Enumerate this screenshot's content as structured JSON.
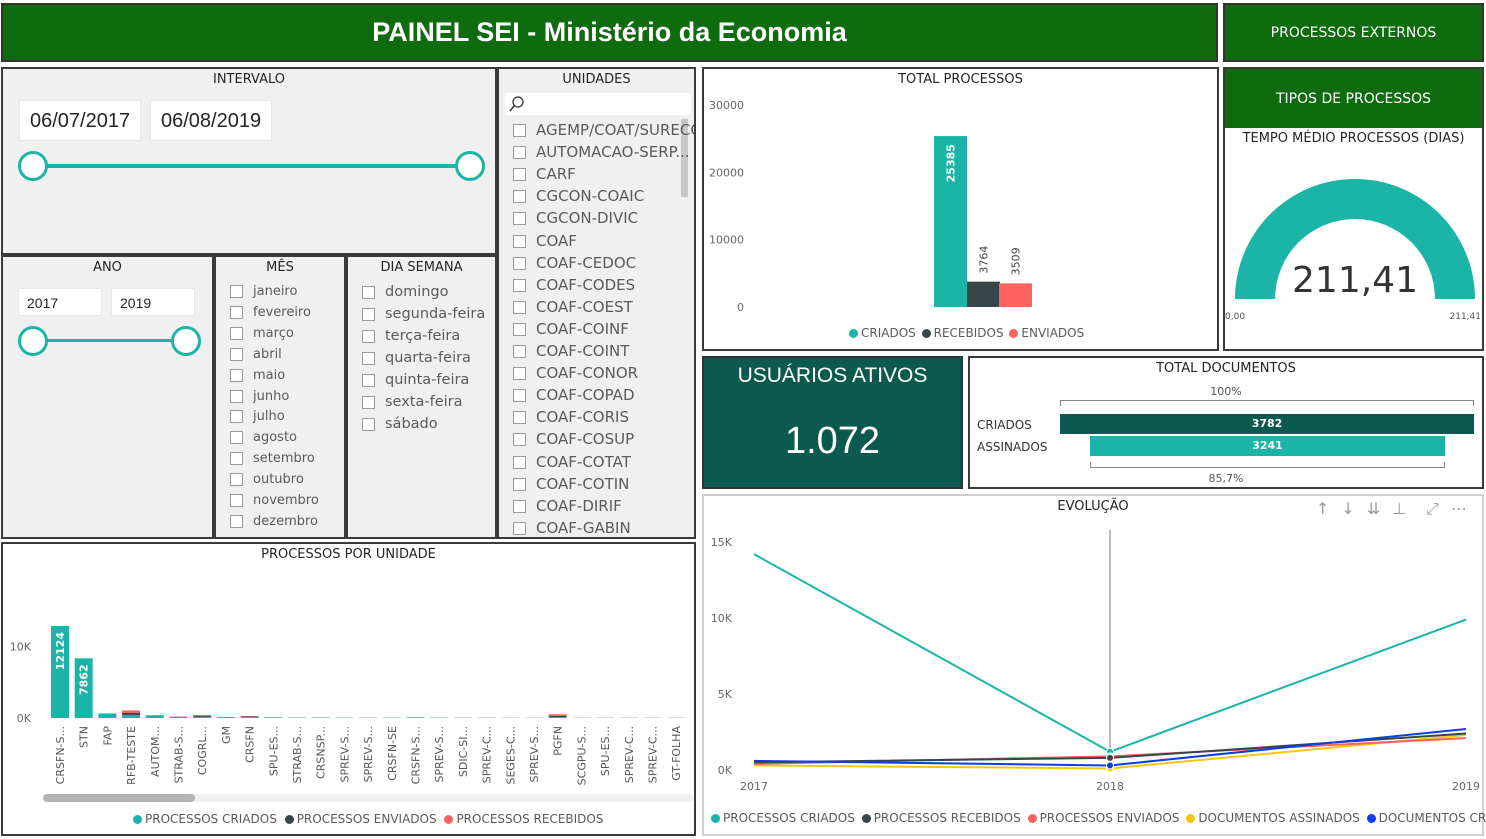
{
  "header": {
    "title": "PAINEL SEI - Ministério da Economia"
  },
  "nav": {
    "external": "PROCESSOS EXTERNOS",
    "types": "TIPOS DE PROCESSOS"
  },
  "colors": {
    "teal": "#1ab5a7",
    "dark": "#374649",
    "red": "#fd625e",
    "yellow": "#f2c80f",
    "blue": "#0b3ee8",
    "green": "#0e6b0e",
    "darkgreen": "#0c5a4f"
  },
  "intervalo": {
    "title": "INTERVALO",
    "start": "06/07/2017",
    "end": "06/08/2019"
  },
  "ano": {
    "title": "ANO",
    "start": "2017",
    "end": "2019"
  },
  "mes": {
    "title": "MÊS",
    "items": [
      "janeiro",
      "fevereiro",
      "março",
      "abril",
      "maio",
      "junho",
      "julho",
      "agosto",
      "setembro",
      "outubro",
      "novembro",
      "dezembro"
    ]
  },
  "dia": {
    "title": "DIA SEMANA",
    "items": [
      "domingo",
      "segunda-feira",
      "terça-feira",
      "quarta-feira",
      "quinta-feira",
      "sexta-feira",
      "sábado"
    ]
  },
  "unidades": {
    "title": "UNIDADES",
    "search_placeholder": "",
    "items": [
      "AGEMP/COAT/SURECO",
      "AUTOMACAO-SERP...",
      "CARF",
      "CGCON-COAIC",
      "CGCON-DIVIC",
      "COAF",
      "COAF-CEDOC",
      "COAF-CODES",
      "COAF-COEST",
      "COAF-COINF",
      "COAF-COINT",
      "COAF-CONOR",
      "COAF-COPAD",
      "COAF-CORIS",
      "COAF-COSUP",
      "COAF-COTAT",
      "COAF-COTIN",
      "COAF-DIRIF",
      "COAF-GABIN"
    ]
  },
  "total_processos": {
    "title": "TOTAL PROCESSOS",
    "legend": [
      "CRIADOS",
      "RECEBIDOS",
      "ENVIADOS"
    ]
  },
  "tempo_medio": {
    "title": "TEMPO MÉDIO PROCESSOS (DIAS)",
    "value": "211,41",
    "min": "0,00",
    "max": "211,41",
    "fraction": 1.0
  },
  "usuarios": {
    "title": "USUÁRIOS ATIVOS",
    "value": "1.072"
  },
  "total_documentos": {
    "title": "TOTAL DOCUMENTOS",
    "top_pct": "100%",
    "bottom_pct": "85,7%",
    "rows": [
      {
        "label": "CRIADOS",
        "value": "3782"
      },
      {
        "label": "ASSINADOS",
        "value": "3241"
      }
    ]
  },
  "processos_unidade": {
    "title": "PROCESSOS POR UNIDADE",
    "legend": [
      "PROCESSOS CRIADOS",
      "PROCESSOS ENVIADOS",
      "PROCESSOS RECEBIDOS"
    ]
  },
  "evolucao": {
    "title": "EVOLUÇÃO",
    "legend": [
      "PROCESSOS CRIADOS",
      "PROCESSOS RECEBIDOS",
      "PROCESSOS ENVIADOS",
      "DOCUMENTOS ASSINADOS",
      "DOCUMENTOS CRIADOS"
    ]
  },
  "chart_data": [
    {
      "type": "bar",
      "title": "TOTAL PROCESSOS",
      "categories": [
        "CRIADOS",
        "RECEBIDOS",
        "ENVIADOS"
      ],
      "values": [
        25385,
        3764,
        3509
      ],
      "ylim": [
        0,
        30000
      ],
      "yticks": [
        "0",
        "10000",
        "20000",
        "30000"
      ]
    },
    {
      "type": "bar",
      "title": "PROCESSOS POR UNIDADE",
      "categories": [
        "CRSFN-S...",
        "STN",
        "FAP",
        "RFB-TESTE",
        "AUTOM...",
        "STRAB-S...",
        "COGRL...",
        "GM",
        "CRSFN",
        "SPU-ES...",
        "STRAB-S...",
        "CRSNSP...",
        "SPREV-S...",
        "SPREV-S...",
        "CRSFN-SE",
        "CRSFN-S...",
        "SPREV-S...",
        "SDIC-SI...",
        "SPREV-C...",
        "SEGES-C...",
        "SPREV-S...",
        "PGFN",
        "SCGPU-S...",
        "SPU-ES...",
        "SPREV-C...",
        "SPREV-C...",
        "GT-FOLHA"
      ],
      "series": [
        {
          "name": "PROCESSOS CRIADOS",
          "values": [
            12124,
            7862,
            600,
            400,
            300,
            150,
            150,
            100,
            120,
            60,
            50,
            50,
            40,
            40,
            40,
            60,
            40,
            30,
            30,
            20,
            20,
            100,
            20,
            20,
            20,
            20,
            20
          ]
        },
        {
          "name": "PROCESSOS ENVIADOS",
          "values": [
            0,
            0,
            0,
            300,
            50,
            30,
            150,
            20,
            80,
            20,
            10,
            20,
            10,
            10,
            10,
            20,
            10,
            10,
            10,
            10,
            10,
            200,
            10,
            10,
            10,
            10,
            10
          ]
        },
        {
          "name": "PROCESSOS RECEBIDOS",
          "values": [
            0,
            0,
            0,
            300,
            20,
            20,
            100,
            10,
            50,
            10,
            10,
            10,
            10,
            10,
            10,
            10,
            10,
            10,
            10,
            10,
            10,
            200,
            10,
            10,
            10,
            10,
            10
          ]
        }
      ],
      "data_labels": [
        "12124",
        "7862"
      ],
      "ylim": [
        0,
        12500
      ],
      "yticks": [
        "0K",
        "10K"
      ]
    },
    {
      "type": "line",
      "title": "EVOLUÇÃO",
      "x": [
        "2017",
        "2018",
        "2019"
      ],
      "yticks": [
        "0K",
        "5K",
        "10K",
        "15K"
      ],
      "ylim": [
        0,
        16000
      ],
      "series": [
        {
          "name": "PROCESSOS CRIADOS",
          "values": [
            14200,
            1200,
            9900
          ]
        },
        {
          "name": "PROCESSOS RECEBIDOS",
          "values": [
            500,
            800,
            2400
          ]
        },
        {
          "name": "PROCESSOS ENVIADOS",
          "values": [
            400,
            900,
            2100
          ]
        },
        {
          "name": "DOCUMENTOS ASSINADOS",
          "values": [
            300,
            100,
            2300
          ]
        },
        {
          "name": "DOCUMENTOS CRIADOS",
          "values": [
            600,
            300,
            2700
          ]
        }
      ]
    }
  ]
}
